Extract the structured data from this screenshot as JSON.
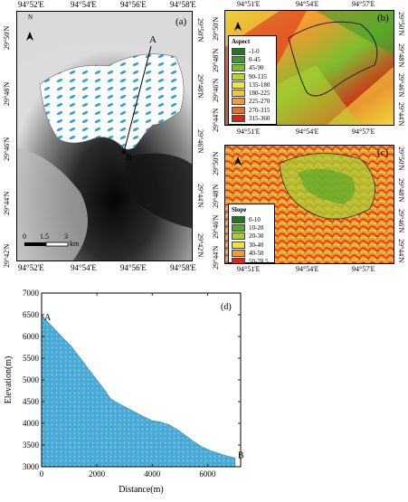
{
  "panels": {
    "a": {
      "label": "(a)",
      "top_ticks": [
        "94°52'E",
        "94°54'E",
        "94°56'E",
        "94°58'E"
      ],
      "bottom_ticks": [
        "94°52'E",
        "94°54'E",
        "94°56'E",
        "94°58'E"
      ],
      "left_ticks": [
        "29°50'N",
        "29°48'N",
        "29°46'N",
        "29°44'N",
        "29°42'N"
      ],
      "right_ticks": [
        "29°50'N",
        "29°48'N",
        "29°46'N",
        "29°44'N",
        "29°42'N"
      ],
      "north": "N",
      "point_a": "A",
      "point_b": "B",
      "scale_labels": [
        "0",
        "1.5",
        "3"
      ],
      "scale_unit": "km"
    },
    "b": {
      "label": "(b)",
      "top_ticks": [
        "94°51'E",
        "94°54'E",
        "94°57'E"
      ],
      "bottom_ticks": [
        "94°51'E",
        "94°54'E",
        "94°57'E"
      ],
      "left_ticks": [
        "29°50'N",
        "29°48'N",
        "29°46'N",
        "29°44'N"
      ],
      "right_ticks": [
        "29°50'N",
        "29°48'N",
        "29°46'N",
        "29°44'N"
      ],
      "north": "N",
      "legend_title": "Aspect",
      "legend": [
        {
          "label": "-1-0",
          "color": "#1f7a1f"
        },
        {
          "label": "0-45",
          "color": "#3f9a2a"
        },
        {
          "label": "45-90",
          "color": "#7cbd2e"
        },
        {
          "label": "90-135",
          "color": "#b8d431"
        },
        {
          "label": "135-180",
          "color": "#f1e63a"
        },
        {
          "label": "180-225",
          "color": "#f6c23a"
        },
        {
          "label": "225-270",
          "color": "#f29a30"
        },
        {
          "label": "270-315",
          "color": "#ea6a24"
        },
        {
          "label": "315-360",
          "color": "#d9261b"
        }
      ]
    },
    "c": {
      "label": "(c)",
      "top_ticks": [
        "94°51'E",
        "94°54'E",
        "94°57'E"
      ],
      "bottom_ticks": [
        "94°51'E",
        "94°54'E",
        "94°57'E"
      ],
      "left_ticks": [
        "29°50'N",
        "29°48'N",
        "29°46'N",
        "29°44'N"
      ],
      "right_ticks": [
        "29°50'N",
        "29°48'N",
        "29°46'N",
        "29°44'N"
      ],
      "north": "N",
      "legend_title": "Slope",
      "legend": [
        {
          "label": "0-10",
          "color": "#1f7a1f"
        },
        {
          "label": "10-20",
          "color": "#5aa62a"
        },
        {
          "label": "20-30",
          "color": "#a9cc32"
        },
        {
          "label": "30-40",
          "color": "#f2e13a"
        },
        {
          "label": "40-50",
          "color": "#f39a30"
        },
        {
          "label": "50-78.5",
          "color": "#d9261b"
        }
      ]
    },
    "d": {
      "label": "(d)"
    }
  },
  "chart_data": {
    "type": "area",
    "xlabel": "Distance(m)",
    "ylabel": "Elevation(m)",
    "xlim": [
      0,
      7200
    ],
    "ylim": [
      3000,
      7000
    ],
    "xticks": [
      0,
      2000,
      4000,
      6000
    ],
    "yticks": [
      3000,
      3500,
      4000,
      4500,
      5000,
      5500,
      6000,
      6500,
      7000
    ],
    "fill_color": "#4aaad6",
    "annotations": [
      {
        "text": "A",
        "x": 0,
        "y": 6500
      },
      {
        "text": "B",
        "x": 7000,
        "y": 3200
      }
    ],
    "series": [
      {
        "x": [
          0,
          200,
          500,
          800,
          1100,
          1400,
          1700,
          2000,
          2300,
          2500,
          2800,
          3100,
          3400,
          3700,
          4000,
          4300,
          4600,
          4900,
          5200,
          5500,
          5800,
          6100,
          6400,
          6700,
          7000
        ],
        "y": [
          6500,
          6350,
          6150,
          5950,
          5750,
          5500,
          5250,
          5000,
          4750,
          4560,
          4450,
          4350,
          4250,
          4150,
          4060,
          4030,
          3970,
          3860,
          3720,
          3580,
          3460,
          3370,
          3310,
          3250,
          3200
        ]
      }
    ]
  }
}
